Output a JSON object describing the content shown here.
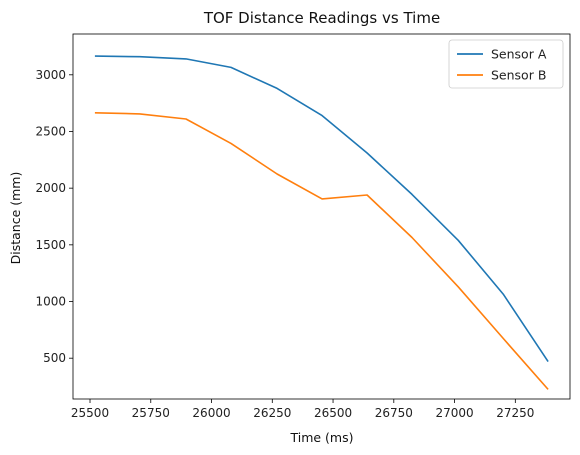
{
  "chart_data": {
    "type": "line",
    "title": "TOF Distance Readings vs Time",
    "xlabel": "Time (ms)",
    "ylabel": "Distance (mm)",
    "xlim": [
      25430,
      27475
    ],
    "ylim": [
      140,
      3360
    ],
    "xticks": [
      25500,
      25750,
      26000,
      26250,
      26500,
      26750,
      27000,
      27250
    ],
    "yticks": [
      500,
      1000,
      1500,
      2000,
      2500,
      3000
    ],
    "grid": false,
    "legend_position": "top-right",
    "series": [
      {
        "name": "Sensor A",
        "color": "#1f77b4",
        "x": [
          25520,
          25705,
          25895,
          26080,
          26270,
          26455,
          26640,
          26825,
          27015,
          27200,
          27385
        ],
        "y": [
          3165,
          3160,
          3140,
          3065,
          2880,
          2640,
          2310,
          1945,
          1540,
          1065,
          470
        ]
      },
      {
        "name": "Sensor B",
        "color": "#ff7f0e",
        "x": [
          25520,
          25705,
          25895,
          26080,
          26270,
          26455,
          26640,
          26825,
          27015,
          27200,
          27385
        ],
        "y": [
          2665,
          2655,
          2610,
          2395,
          2125,
          1905,
          1940,
          1565,
          1130,
          675,
          225
        ]
      }
    ]
  }
}
